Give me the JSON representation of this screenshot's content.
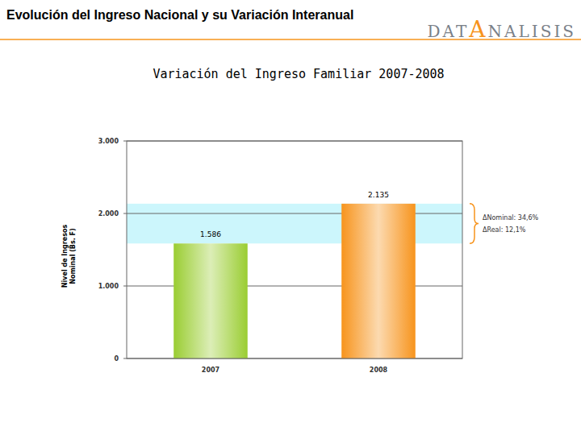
{
  "header": {
    "title": "Evolución del Ingreso Nacional y su Variación Interanual",
    "logo": "DATANALISIS"
  },
  "chart_data": {
    "type": "bar",
    "title": "Variación del Ingreso Familiar 2007-2008",
    "y_label": [
      "Nivel de Ingresos",
      "Nominal (Bs. F)"
    ],
    "categories": [
      "2007",
      "2008"
    ],
    "values": [
      1586,
      2135
    ],
    "value_labels": [
      "1.586",
      "2.135"
    ],
    "data_labels": true,
    "colors": [
      "#9acd32",
      "#f7941d"
    ],
    "ylim": [
      0,
      3000
    ],
    "yticks": [
      0,
      {
        "value": 1000,
        "label": "1.000"
      },
      {
        "value": 2000,
        "label": "2.000"
      },
      {
        "value": 3000,
        "label": "3.000"
      }
    ],
    "grid": true,
    "annotations": [
      "ΔNominal: 34,6%",
      "ΔReal: 12,1%"
    ]
  }
}
